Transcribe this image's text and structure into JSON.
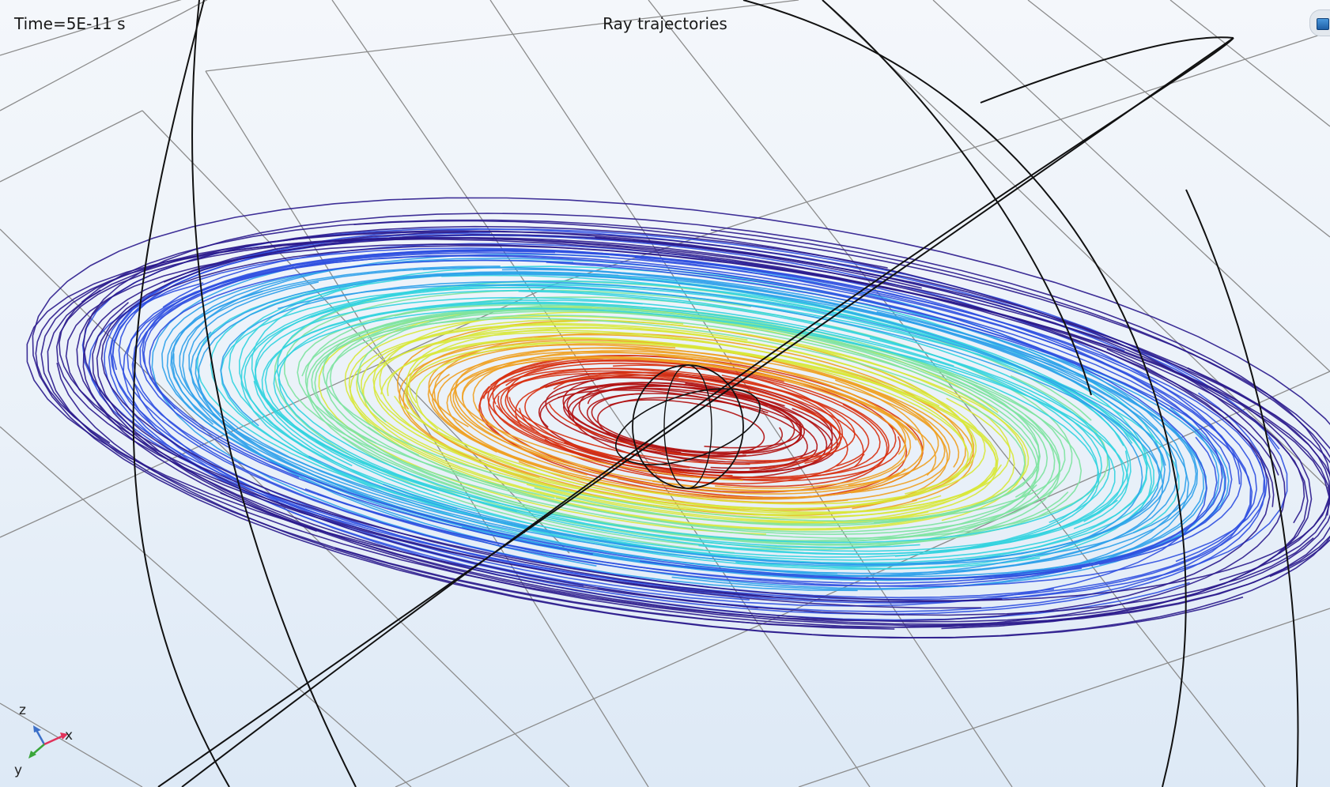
{
  "header": {
    "time_label": "Time=5E-11 s",
    "title": "Ray trajectories"
  },
  "axis_triad": {
    "x_label": "x",
    "y_label": "y",
    "z_label": "z",
    "colors": {
      "x": "#e0325a",
      "y": "#3aa63a",
      "z": "#3b6fc8"
    }
  },
  "colors": {
    "background_top": "#f4f7fb",
    "background_bottom": "#dde9f6",
    "grid_line": "#8c8c8c",
    "geometry_edge": "#111111",
    "trajectory_colormap": [
      "#2a1a8c",
      "#2f4fe0",
      "#2ea0ea",
      "#32d3df",
      "#7de3a0",
      "#d8e83a",
      "#f0a020",
      "#d83010",
      "#b01010"
    ]
  },
  "toolbar": {
    "nav_icon": "view-navigation-icon"
  }
}
